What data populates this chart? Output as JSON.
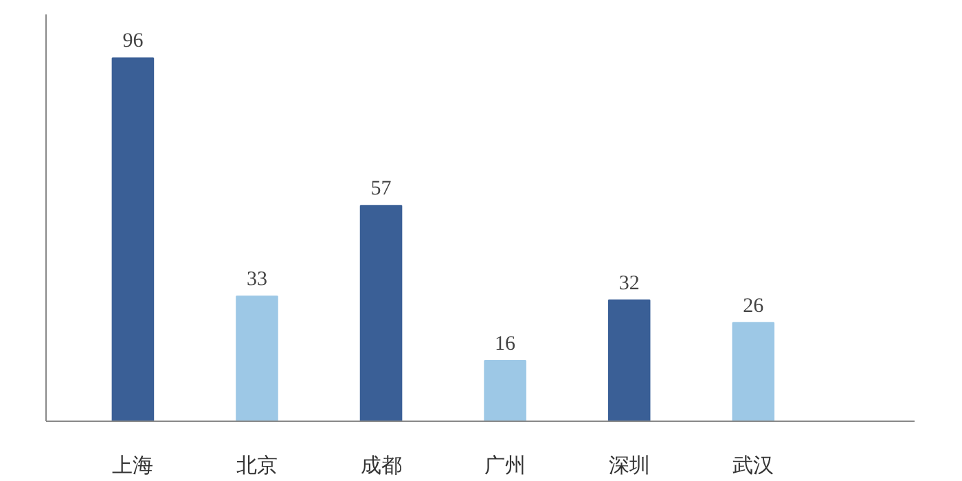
{
  "chart_data": {
    "type": "bar",
    "categories": [
      "上海",
      "北京",
      "成都",
      "广州",
      "深圳",
      "武汉"
    ],
    "values": [
      96,
      33,
      57,
      16,
      32,
      26
    ],
    "colors": [
      "#3a5f96",
      "#9dc8e6",
      "#3a5f96",
      "#9dc8e6",
      "#3a5f96",
      "#9dc8e6"
    ],
    "data_labels": true,
    "tick_labels": "x"
  }
}
